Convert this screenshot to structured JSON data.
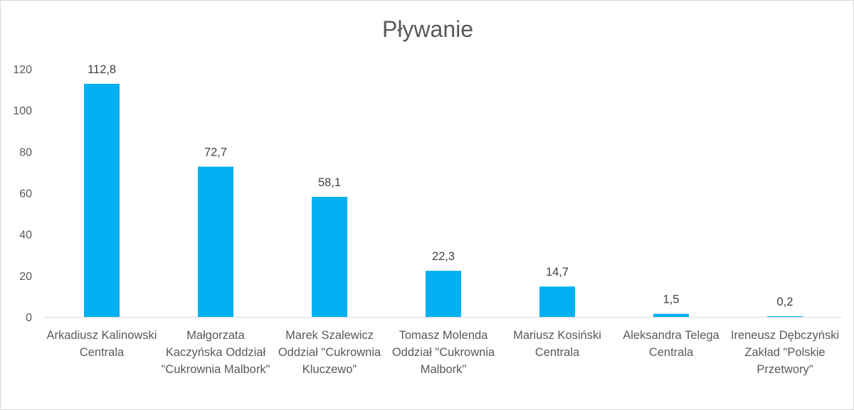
{
  "chart_data": {
    "type": "bar",
    "title": "Pływanie",
    "xlabel": "",
    "ylabel": "",
    "ylim": [
      0,
      120
    ],
    "yticks": [
      0,
      20,
      40,
      60,
      80,
      100,
      120
    ],
    "grid": false,
    "legend": "none",
    "bar_color": "#00b0f0",
    "categories": [
      "Arkadiusz Kalinowski Centrala",
      "Małgorzata Kaczyńska Oddział \"Cukrownia Malbork\"",
      "Marek Szalewicz Oddział \"Cukrownia Kluczewo\"",
      "Tomasz Molenda Oddział \"Cukrownia Malbork\"",
      "Mariusz Kosiński Centrala",
      "Aleksandra Telega Centrala",
      "Ireneusz Dębczyński Zakład \"Polskie Przetwory\""
    ],
    "values": [
      112.8,
      72.7,
      58.1,
      22.3,
      14.7,
      1.5,
      0.2
    ],
    "data_labels": [
      "112,8",
      "72,7",
      "58,1",
      "22,3",
      "14,7",
      "1,5",
      "0,2"
    ]
  }
}
